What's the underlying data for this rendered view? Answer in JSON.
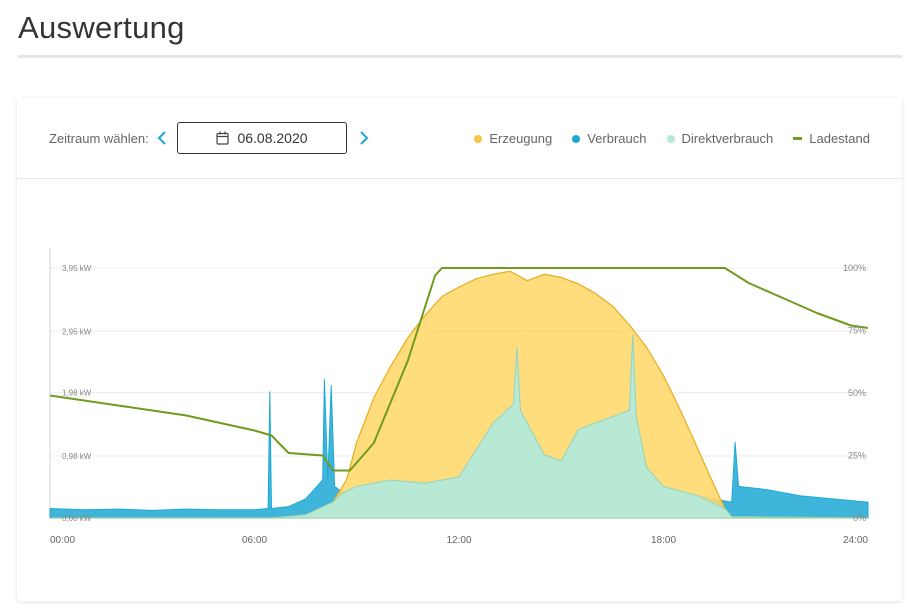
{
  "page": {
    "title": "Auswertung"
  },
  "controls": {
    "period_label": "Zeitraum wählen:",
    "date": "06.08.2020",
    "prev_icon": "chevron-left-icon",
    "next_icon": "chevron-right-icon",
    "calendar_icon": "calendar-icon"
  },
  "legend": [
    {
      "label": "Erzeugung",
      "color": "#f5c544",
      "marker": "dot"
    },
    {
      "label": "Verbrauch",
      "color": "#1ea8d6",
      "marker": "dot"
    },
    {
      "label": "Direktverbrauch",
      "color": "#b4ead9",
      "marker": "dot"
    },
    {
      "label": "Ladestand",
      "color": "#6f9b1e",
      "marker": "line"
    }
  ],
  "chart_data": {
    "type": "area",
    "x_ticks": [
      "00:00",
      "06:00",
      "12:00",
      "18:00",
      "24:00"
    ],
    "y_left_ticks": [
      "3,95 kW",
      "2,95 kW",
      "1,98 kW",
      "0,98 kW",
      "0,00 kW"
    ],
    "y_left_values": [
      3.95,
      2.95,
      1.98,
      0.98,
      0.0
    ],
    "y_right_ticks": [
      "100%",
      "75%",
      "50%",
      "25%",
      "0%"
    ],
    "y_right_values": [
      100,
      75,
      50,
      25,
      0
    ],
    "ylim_left": [
      0,
      3.95
    ],
    "ylim_right": [
      0,
      100
    ],
    "xlim_hours": [
      0,
      24
    ],
    "grid": "horizontal",
    "series": [
      {
        "name": "Erzeugung",
        "color": "#f5c544",
        "points": [
          [
            0,
            0
          ],
          [
            6.5,
            0
          ],
          [
            7.5,
            0.05
          ],
          [
            8.3,
            0.25
          ],
          [
            8.7,
            0.6
          ],
          [
            9.0,
            1.2
          ],
          [
            9.5,
            1.9
          ],
          [
            10,
            2.4
          ],
          [
            10.5,
            2.85
          ],
          [
            11,
            3.2
          ],
          [
            11.5,
            3.5
          ],
          [
            12,
            3.65
          ],
          [
            12.5,
            3.78
          ],
          [
            13,
            3.85
          ],
          [
            13.5,
            3.9
          ],
          [
            14,
            3.75
          ],
          [
            14.5,
            3.85
          ],
          [
            15,
            3.8
          ],
          [
            15.5,
            3.7
          ],
          [
            16,
            3.55
          ],
          [
            16.5,
            3.35
          ],
          [
            17,
            3.05
          ],
          [
            17.5,
            2.7
          ],
          [
            18,
            2.25
          ],
          [
            18.5,
            1.7
          ],
          [
            19,
            1.1
          ],
          [
            19.5,
            0.5
          ],
          [
            19.8,
            0.15
          ],
          [
            20,
            0.02
          ],
          [
            24,
            0
          ]
        ]
      },
      {
        "name": "Verbrauch",
        "color": "#1ea8d6",
        "points": [
          [
            0,
            0.15
          ],
          [
            1,
            0.13
          ],
          [
            2,
            0.14
          ],
          [
            3,
            0.12
          ],
          [
            4,
            0.14
          ],
          [
            5,
            0.13
          ],
          [
            6,
            0.13
          ],
          [
            6.4,
            0.15
          ],
          [
            6.45,
            2.0
          ],
          [
            6.5,
            0.15
          ],
          [
            7,
            0.18
          ],
          [
            7.5,
            0.3
          ],
          [
            8,
            0.6
          ],
          [
            8.05,
            2.2
          ],
          [
            8.15,
            0.6
          ],
          [
            8.25,
            2.1
          ],
          [
            8.35,
            0.5
          ],
          [
            8.6,
            0.4
          ],
          [
            9,
            0.5
          ],
          [
            10,
            0.6
          ],
          [
            11,
            0.55
          ],
          [
            12,
            0.65
          ],
          [
            13,
            1.5
          ],
          [
            13.6,
            1.8
          ],
          [
            13.7,
            2.7
          ],
          [
            13.8,
            1.7
          ],
          [
            14.5,
            1.0
          ],
          [
            15,
            0.9
          ],
          [
            15.5,
            1.4
          ],
          [
            16,
            1.5
          ],
          [
            16.5,
            1.6
          ],
          [
            17,
            1.7
          ],
          [
            17.1,
            2.9
          ],
          [
            17.2,
            1.6
          ],
          [
            17.5,
            0.8
          ],
          [
            18,
            0.5
          ],
          [
            19,
            0.35
          ],
          [
            20,
            0.25
          ],
          [
            20.1,
            1.2
          ],
          [
            20.2,
            0.5
          ],
          [
            21,
            0.45
          ],
          [
            22,
            0.35
          ],
          [
            23,
            0.3
          ],
          [
            24,
            0.25
          ]
        ]
      },
      {
        "name": "Direktverbrauch",
        "color": "#b4ead9",
        "points": [
          [
            0,
            0
          ],
          [
            6.5,
            0
          ],
          [
            7.5,
            0.05
          ],
          [
            8.3,
            0.25
          ],
          [
            8.6,
            0.4
          ],
          [
            9,
            0.5
          ],
          [
            10,
            0.6
          ],
          [
            11,
            0.55
          ],
          [
            12,
            0.65
          ],
          [
            13,
            1.5
          ],
          [
            13.6,
            1.8
          ],
          [
            13.7,
            2.7
          ],
          [
            13.8,
            1.7
          ],
          [
            14.5,
            1.0
          ],
          [
            15,
            0.9
          ],
          [
            15.5,
            1.4
          ],
          [
            16,
            1.5
          ],
          [
            16.5,
            1.6
          ],
          [
            17,
            1.7
          ],
          [
            17.1,
            2.9
          ],
          [
            17.2,
            1.6
          ],
          [
            17.5,
            0.8
          ],
          [
            18,
            0.5
          ],
          [
            19,
            0.35
          ],
          [
            19.8,
            0.15
          ],
          [
            20,
            0.02
          ],
          [
            24,
            0
          ]
        ]
      },
      {
        "name": "Ladestand",
        "color": "#6f9b1e",
        "axis": "right",
        "points": [
          [
            0,
            49
          ],
          [
            0.5,
            48
          ],
          [
            1,
            47
          ],
          [
            2,
            45
          ],
          [
            3,
            43
          ],
          [
            4,
            41
          ],
          [
            5,
            38
          ],
          [
            6,
            35
          ],
          [
            6.5,
            33
          ],
          [
            7,
            26
          ],
          [
            8,
            25
          ],
          [
            8.3,
            19
          ],
          [
            8.8,
            19
          ],
          [
            9.5,
            30
          ],
          [
            10.5,
            63
          ],
          [
            11.3,
            97
          ],
          [
            11.5,
            100
          ],
          [
            13,
            100
          ],
          [
            15,
            100
          ],
          [
            17,
            100
          ],
          [
            19,
            100
          ],
          [
            19.8,
            100
          ],
          [
            20.5,
            94
          ],
          [
            21.5,
            88
          ],
          [
            22.5,
            82
          ],
          [
            23.5,
            77
          ],
          [
            24,
            76
          ]
        ]
      }
    ]
  }
}
